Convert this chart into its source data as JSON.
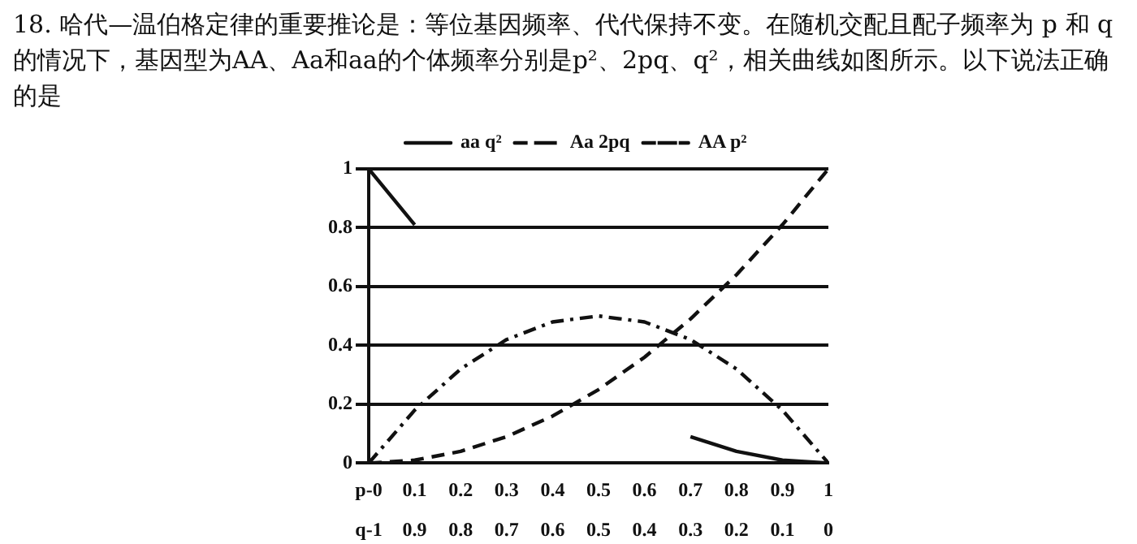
{
  "chart_data": {
    "type": "line",
    "title": "18. 哈代—温伯格定律的重要推论是：等位基因频率、代代保持不变。在随机交配且配子频率为 p 和 q 的情况下，基因型为AA、Aa和aa的个体频率分别是p²、2pq、q²，相关曲线如图所示。以下说法正确的是",
    "x": [
      0,
      0.1,
      0.2,
      0.3,
      0.4,
      0.5,
      0.6,
      0.7,
      0.8,
      0.9,
      1
    ],
    "series": [
      {
        "name": "aa q²",
        "color": "#111111",
        "line_style": "solid",
        "values": [
          1,
          0.81,
          null,
          null,
          null,
          null,
          null,
          0.09,
          0.04,
          0.01,
          0
        ]
      },
      {
        "name": "Aa 2pq",
        "color": "#111111",
        "line_style": "dashdot",
        "values": [
          0,
          0.18,
          0.32,
          0.42,
          0.48,
          0.5,
          0.48,
          0.42,
          0.32,
          0.18,
          0
        ]
      },
      {
        "name": "AA p²",
        "color": "#111111",
        "line_style": "dashed",
        "values": [
          0,
          0.01,
          0.04,
          0.09,
          0.16,
          0.25,
          0.36,
          0.49,
          0.64,
          0.81,
          1
        ]
      }
    ],
    "xlim": [
      0,
      1
    ],
    "xticks": [
      {
        "value": 0,
        "label": "p-0"
      },
      0.1,
      0.2,
      0.3,
      0.4,
      0.5,
      0.6,
      0.7,
      0.8,
      0.9,
      1
    ],
    "x2lim": [
      1,
      0
    ],
    "x2ticks": [
      {
        "value": 1,
        "label": "q-1"
      },
      0.9,
      0.8,
      0.7,
      0.6,
      0.5,
      0.4,
      0.3,
      0.2,
      0.1,
      0
    ],
    "ylim": [
      0,
      1
    ],
    "yticks": [
      0,
      0.2,
      0.4,
      0.6,
      0.8,
      1
    ],
    "grid": "y",
    "legend": "top",
    "marker": "none"
  }
}
